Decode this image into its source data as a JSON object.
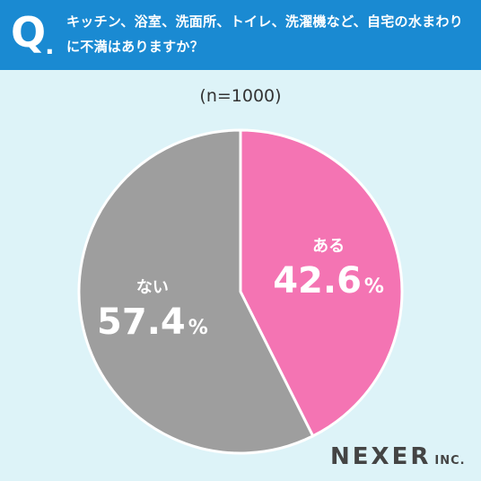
{
  "header": {
    "q_mark": "Q",
    "q_dot": ".",
    "question": "キッチン、浴室、洗面所、トイレ、洗濯機など、自宅の水まわりに不満はありますか？"
  },
  "colors": {
    "header_bg": "#1a8ad2",
    "background": "#ddf3f8",
    "aru": "#f474b3",
    "nai": "#9e9e9e"
  },
  "chart_data": {
    "type": "pie",
    "title": "",
    "note": "(n=1000)",
    "start": "12 o'clock, clockwise",
    "slices": [
      {
        "label": "ある",
        "value": 42.6,
        "display": "42.6",
        "unit": "%",
        "color": "#f474b3"
      },
      {
        "label": "ない",
        "value": 57.4,
        "display": "57.4",
        "unit": "%",
        "color": "#9e9e9e"
      }
    ]
  },
  "brand": {
    "name": "NEXER",
    "suffix": "INC."
  }
}
